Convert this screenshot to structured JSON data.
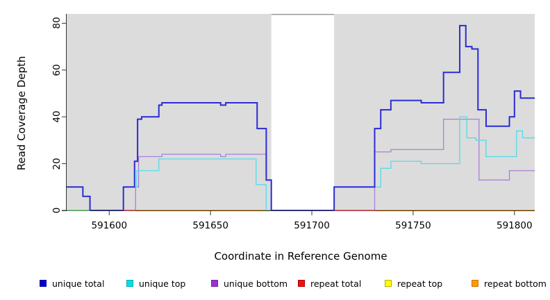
{
  "chart_data": {
    "type": "line",
    "step": true,
    "title": "",
    "xlabel": "Coordinate in Reference Genome",
    "ylabel": "Read Coverage Depth",
    "xlim": [
      591579,
      591810
    ],
    "ylim": [
      0,
      84
    ],
    "xticks": [
      "591600",
      "591650",
      "591700",
      "591750",
      "591800"
    ],
    "yticks": [
      "0",
      "20",
      "40",
      "60",
      "80"
    ],
    "grid": false,
    "legend_position": "bottom",
    "panel_background": "#dcdcdc",
    "axis_color": "#333333",
    "masked_region": {
      "from": 591680,
      "to": 591711,
      "color": "#ffffff",
      "top_border_color": "#9a9a9a"
    },
    "series": [
      {
        "name": "repeat total",
        "color": "#dd2222",
        "width": 1.2,
        "points": [
          [
            591579,
            0
          ]
        ]
      },
      {
        "name": "repeat top",
        "color": "#f7f725",
        "width": 1.2,
        "points": [
          [
            591579,
            0
          ]
        ]
      },
      {
        "name": "repeat bottom",
        "color": "#ff9100",
        "width": 1.7,
        "points": [
          [
            591579,
            0
          ]
        ]
      },
      {
        "name": "unique bottom",
        "color": "#a97fd6",
        "width": 1.3,
        "points": [
          [
            591579,
            0
          ],
          [
            591613,
            10
          ],
          [
            591614.5,
            23
          ],
          [
            591626,
            24
          ],
          [
            591655,
            23
          ],
          [
            591657.5,
            24
          ],
          [
            591677.5,
            13
          ],
          [
            591680,
            0
          ],
          [
            591731,
            25
          ],
          [
            591739,
            26
          ],
          [
            591765,
            39
          ],
          [
            591782.5,
            13
          ],
          [
            591797.5,
            17
          ]
        ]
      },
      {
        "name": "unique top",
        "color": "#52dbe8",
        "width": 1.3,
        "points": [
          [
            591579,
            0
          ],
          [
            591607,
            10
          ],
          [
            591613.5,
            17
          ],
          [
            591624.5,
            22
          ],
          [
            591672.5,
            11
          ],
          [
            591677.5,
            0
          ],
          [
            591711,
            10
          ],
          [
            591734,
            18
          ],
          [
            591739,
            21
          ],
          [
            591754,
            20
          ],
          [
            591773,
            40
          ],
          [
            591776.5,
            31
          ],
          [
            591781,
            30
          ],
          [
            591786,
            23
          ],
          [
            591801,
            34
          ],
          [
            591804,
            31
          ]
        ]
      },
      {
        "name": "unique total",
        "color": "#2b2bd4",
        "width": 2.0,
        "points": [
          [
            591579,
            10
          ],
          [
            591587,
            6
          ],
          [
            591590.5,
            0
          ],
          [
            591607,
            10
          ],
          [
            591612.5,
            21
          ],
          [
            591614,
            39
          ],
          [
            591616,
            40
          ],
          [
            591624.5,
            45
          ],
          [
            591626,
            46
          ],
          [
            591655,
            45
          ],
          [
            591657.5,
            46
          ],
          [
            591673,
            35
          ],
          [
            591677.5,
            13
          ],
          [
            591680,
            0
          ],
          [
            591711,
            10
          ],
          [
            591731,
            35
          ],
          [
            591734,
            43
          ],
          [
            591739,
            47
          ],
          [
            591754,
            46
          ],
          [
            591765,
            59
          ],
          [
            591773,
            79
          ],
          [
            591776,
            70
          ],
          [
            591779,
            69
          ],
          [
            591782,
            43
          ],
          [
            591786,
            36
          ],
          [
            591797.5,
            40
          ],
          [
            591800,
            51
          ],
          [
            591803,
            48
          ]
        ]
      }
    ],
    "zero_line_blend_segments": [
      {
        "from": 591579,
        "to": 591590.5,
        "color": "#6fc27d"
      },
      {
        "from": 591607,
        "to": 591613,
        "color": "#cf4a5e"
      },
      {
        "from": 591711,
        "to": 591731,
        "color": "#cf4a5e"
      }
    ],
    "legend": {
      "items": [
        {
          "label": "unique total",
          "color": "#0000cc",
          "border": "#000099"
        },
        {
          "label": "unique top",
          "color": "#00e0e8",
          "border": "#00a8b0"
        },
        {
          "label": "unique bottom",
          "color": "#9933cc",
          "border": "#7722aa"
        },
        {
          "label": "repeat total",
          "color": "#ee1111",
          "border": "#aa0000"
        },
        {
          "label": "repeat top",
          "color": "#ffff00",
          "border": "#b0b000"
        },
        {
          "label": "repeat bottom",
          "color": "#ff9900",
          "border": "#c77400"
        }
      ]
    }
  }
}
